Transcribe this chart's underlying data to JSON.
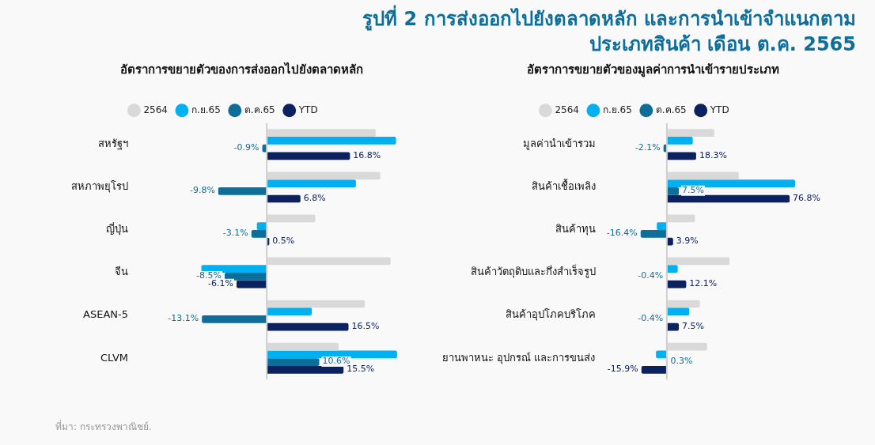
{
  "chart_data": [
    {
      "type": "bar",
      "orientation": "horizontal",
      "title": "รูปที่ 2  การส่งออกไปยังตลาดหลัก และการนำเข้าจำแนกตามประเภทสินค้า เดือน ต.ค. 2565",
      "subtitle": "อัตราการขยายตัวของการส่งออกไปยังตลาดหลัก",
      "categories": [
        "สหรัฐฯ",
        "สหภาพยุโรป",
        "ญี่ปุ่น",
        "จีน",
        "ASEAN-5",
        "CLVM"
      ],
      "tick_labels": "y",
      "legend": "top",
      "grid": false,
      "annotations": [
        "ที่มา: กระทรวงพาณิชย์."
      ],
      "series": [
        {
          "name": "2564",
          "color": "#d9d9d9",
          "values": [
            22.0,
            22.9,
            9.8,
            25.0,
            19.8,
            14.5
          ]
        },
        {
          "name": "ก.ย.65",
          "color": "#00b0f0",
          "values": [
            26.1,
            18.0,
            -2.0,
            -13.2,
            9.1,
            26.3
          ]
        },
        {
          "name": "ต.ค.65",
          "color": "#0e6e9a",
          "values": [
            -0.9,
            -9.8,
            -3.1,
            -8.5,
            -13.1,
            10.6
          ],
          "value_labels": [
            "-0.9%",
            "-9.8%",
            "-3.1%",
            "-8.5%",
            "-13.1%",
            "10.6%"
          ]
        },
        {
          "name": "YTD",
          "color": "#0b2160",
          "values": [
            16.8,
            6.8,
            0.5,
            -6.1,
            16.5,
            15.5
          ],
          "value_labels": [
            "16.8%",
            "6.8%",
            "0.5%",
            "-6.1%",
            "16.5%",
            "15.5%"
          ]
        }
      ]
    },
    {
      "type": "bar",
      "orientation": "horizontal",
      "subtitle": "อัตราการขยายตัวของมูลค่าการนำเข้ารายประเภท",
      "categories": [
        "มูลค่านำเข้ารวม",
        "สินค้าเชื้อเพลิง",
        "สินค้าทุน",
        "สินค้าวัตถุดิบและกึ่งสำเร็จรูป",
        "สินค้าอุปโภคบริโภค",
        "ยานพาหนะ อุปกรณ์ และการขนส่ง"
      ],
      "tick_labels": "y",
      "legend": "top",
      "grid": false,
      "series": [
        {
          "name": "2564",
          "color": "#d9d9d9",
          "values": [
            29.7,
            45.0,
            17.6,
            39.2,
            20.7,
            25.2
          ]
        },
        {
          "name": "ก.ย.65",
          "color": "#00b0f0",
          "values": [
            16.2,
            80.2,
            -6.3,
            6.8,
            14.0,
            -6.8
          ]
        },
        {
          "name": "ต.ค.65",
          "color": "#0e6e9a",
          "values": [
            -2.1,
            7.5,
            -16.4,
            -0.4,
            -0.4,
            0.3
          ],
          "value_labels": [
            "-2.1%",
            "7.5%",
            "-16.4%",
            "-0.4%",
            "-0.4%",
            "0.3%"
          ]
        },
        {
          "name": "YTD",
          "color": "#0b2160",
          "values": [
            18.3,
            76.8,
            3.9,
            12.1,
            7.5,
            -15.9
          ],
          "value_labels": [
            "18.3%",
            "76.8%",
            "3.9%",
            "12.1%",
            "7.5%",
            "-15.9%"
          ]
        }
      ]
    }
  ]
}
